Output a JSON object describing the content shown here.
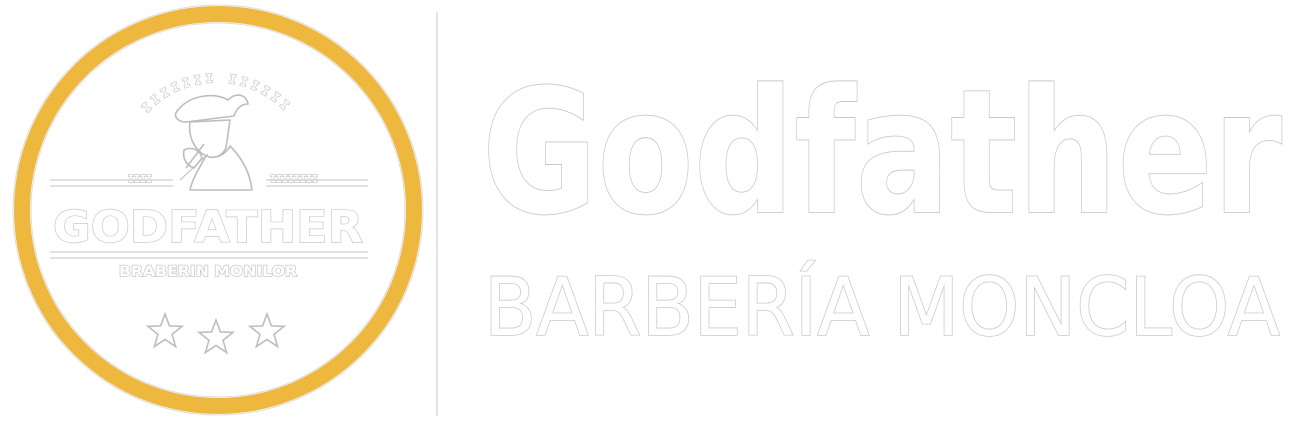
{
  "colors": {
    "ring": "#eeb73e",
    "outline": "#c9c9c9",
    "background": "#ffffff"
  },
  "emblem": {
    "arc_text": "IIIIIII IIIIII",
    "side_left": "IIII",
    "side_right": "IIIIIIII",
    "name": "GODFATHER",
    "subtitle": "BRABERIN MONILOR",
    "stars": 3,
    "icon": "barber-silhouette-icon"
  },
  "brand": {
    "name": "Godfather",
    "tagline": "BARBERÍA MONCLOA"
  }
}
